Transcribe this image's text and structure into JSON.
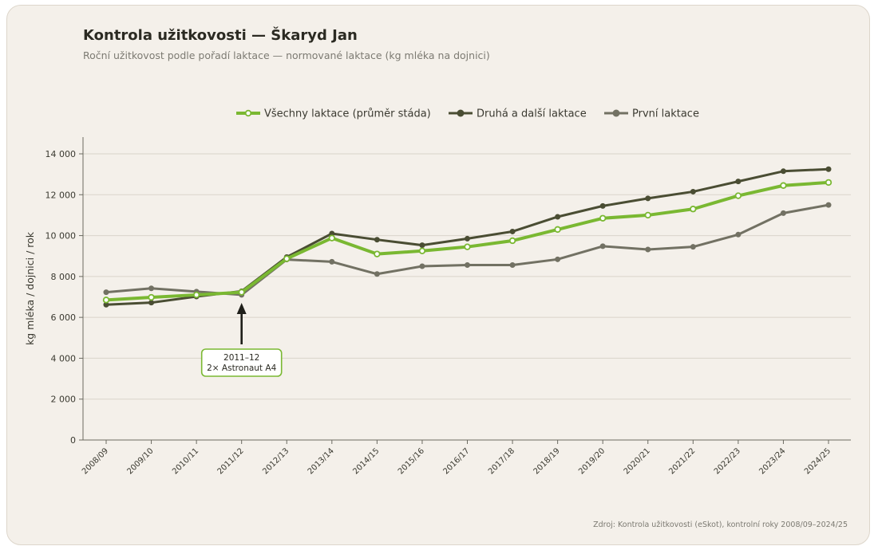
{
  "header": {
    "title": "Kontrola užitkovosti — Škaryd Jan",
    "subtitle": "Roční užitkovost podle pořadí laktace — normované laktace (kg mléka na dojnici)"
  },
  "source": "Zdroj: Kontrola užitkovosti (eSkot), kontrolní roky 2008/09–2024/25",
  "colors": {
    "all": "#7ab832",
    "second": "#4a4d33",
    "first": "#727163",
    "grid": "#d9d4cb",
    "axis": "#6b6a60",
    "annotation_border": "#7ab832",
    "arrow": "#1f1f1a"
  },
  "chart_data": {
    "type": "line",
    "title": "Kontrola užitkovosti — Škaryd Jan",
    "ylabel": "kg mléka / dojnici / rok",
    "xlabel": "",
    "ylim": [
      0,
      14000
    ],
    "yticks": [
      0,
      2000,
      4000,
      6000,
      8000,
      10000,
      12000,
      14000
    ],
    "ytick_labels": [
      "0",
      "2 000",
      "4 000",
      "6 000",
      "8 000",
      "10 000",
      "12 000",
      "14 000"
    ],
    "grid": true,
    "legend_position": "top-center",
    "categories": [
      "2008/09",
      "2009/10",
      "2010/11",
      "2011/12",
      "2012/13",
      "2013/14",
      "2014/15",
      "2015/16",
      "2016/17",
      "2017/18",
      "2018/19",
      "2019/20",
      "2020/21",
      "2021/22",
      "2022/23",
      "2023/24",
      "2024/25"
    ],
    "series": [
      {
        "name": "Všechny laktace (průměr stáda)",
        "key": "all",
        "values": [
          6850,
          6980,
          7100,
          7230,
          8870,
          9880,
          9100,
          9250,
          9450,
          9750,
          10300,
          10850,
          11000,
          11300,
          11950,
          12450,
          12600
        ]
      },
      {
        "name": "Druhá a další laktace",
        "key": "second",
        "values": [
          6620,
          6720,
          7020,
          7280,
          8950,
          10100,
          9800,
          9530,
          9850,
          10200,
          10920,
          11450,
          11820,
          12150,
          12650,
          13150,
          13250
        ]
      },
      {
        "name": "První laktace",
        "key": "first",
        "values": [
          7230,
          7420,
          7260,
          7100,
          8830,
          8720,
          8120,
          8500,
          8560,
          8560,
          8840,
          9480,
          9320,
          9450,
          10050,
          11100,
          11500
        ]
      }
    ],
    "annotation": {
      "category": "2011/12",
      "line1": "2011–12",
      "line2": "2× Astronaut A4"
    }
  }
}
